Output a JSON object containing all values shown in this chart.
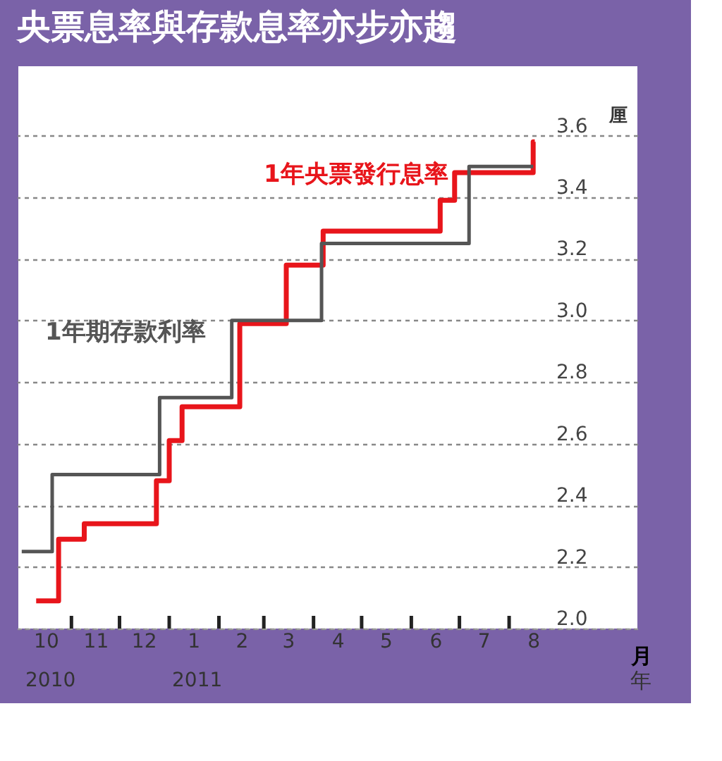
{
  "chart_data": {
    "type": "step",
    "title": "央票息率與存款息率亦步亦趨",
    "xlabel": "月",
    "ylabel": "厘",
    "series": [
      {
        "name": "1年央票發行息率",
        "color": "#e8151b",
        "x": [
          "2010-10-10",
          "2010-10-24",
          "2010-11-09",
          "2010-12-24",
          "2011-01-01",
          "2011-01-09",
          "2011-02-14",
          "2011-03-15",
          "2011-04-07",
          "2011-06-19",
          "2011-06-28",
          "2011-08-16",
          "2011-08-17"
        ],
        "values": [
          2.09,
          2.29,
          2.34,
          2.48,
          2.61,
          2.72,
          2.99,
          3.18,
          3.29,
          3.39,
          3.48,
          3.58,
          3.58
        ]
      },
      {
        "name": "1年期存款利率",
        "color": "#555555",
        "x": [
          "2010-10-01",
          "2010-10-20",
          "2010-12-26",
          "2011-02-09",
          "2011-04-06",
          "2011-07-07",
          "2011-08-16"
        ],
        "values": [
          2.25,
          2.5,
          2.75,
          3.0,
          3.25,
          3.5,
          3.5
        ]
      }
    ],
    "xlim": [
      "2010-09-28",
      "2011-10-20"
    ],
    "xticks": [
      {
        "value": "2010-10-16",
        "label": "10"
      },
      {
        "value": "2010-11-01",
        "label": null
      },
      {
        "value": "2010-11-16",
        "label": "11"
      },
      {
        "value": "2010-12-01",
        "label": null
      },
      {
        "value": "2010-12-16",
        "label": "12"
      },
      {
        "value": "2011-01-01",
        "label": null
      },
      {
        "value": "2011-01-16",
        "label": "1"
      },
      {
        "value": "2011-02-01",
        "label": null
      },
      {
        "value": "2011-02-15",
        "label": "2"
      },
      {
        "value": "2011-03-01",
        "label": null
      },
      {
        "value": "2011-03-16",
        "label": "3"
      },
      {
        "value": "2011-04-01",
        "label": null
      },
      {
        "value": "2011-04-16",
        "label": "4"
      },
      {
        "value": "2011-05-01",
        "label": null
      },
      {
        "value": "2011-05-16",
        "label": "5"
      },
      {
        "value": "2011-06-01",
        "label": null
      },
      {
        "value": "2011-06-16",
        "label": "6"
      },
      {
        "value": "2011-07-01",
        "label": null
      },
      {
        "value": "2011-07-16",
        "label": "7"
      },
      {
        "value": "2011-08-01",
        "label": null
      },
      {
        "value": "2011-08-16",
        "label": "8"
      }
    ],
    "ylim": [
      2.0,
      3.83
    ],
    "yticks": [
      {
        "value": 2.0,
        "label": "2.0"
      },
      {
        "value": 2.2,
        "label": "2.2"
      },
      {
        "value": 2.4,
        "label": "2.4"
      },
      {
        "value": 2.6,
        "label": "2.6"
      },
      {
        "value": 2.8,
        "label": "2.8"
      },
      {
        "value": 3.0,
        "label": "3.0"
      },
      {
        "value": 3.2,
        "label": "3.2"
      },
      {
        "value": 3.4,
        "label": "3.4"
      },
      {
        "value": 3.6,
        "label": "3.6"
      }
    ],
    "grid": "y",
    "legend": false,
    "line_style": "solid",
    "marker": "none",
    "annotations": [
      "2010",
      "2011",
      "年"
    ]
  }
}
